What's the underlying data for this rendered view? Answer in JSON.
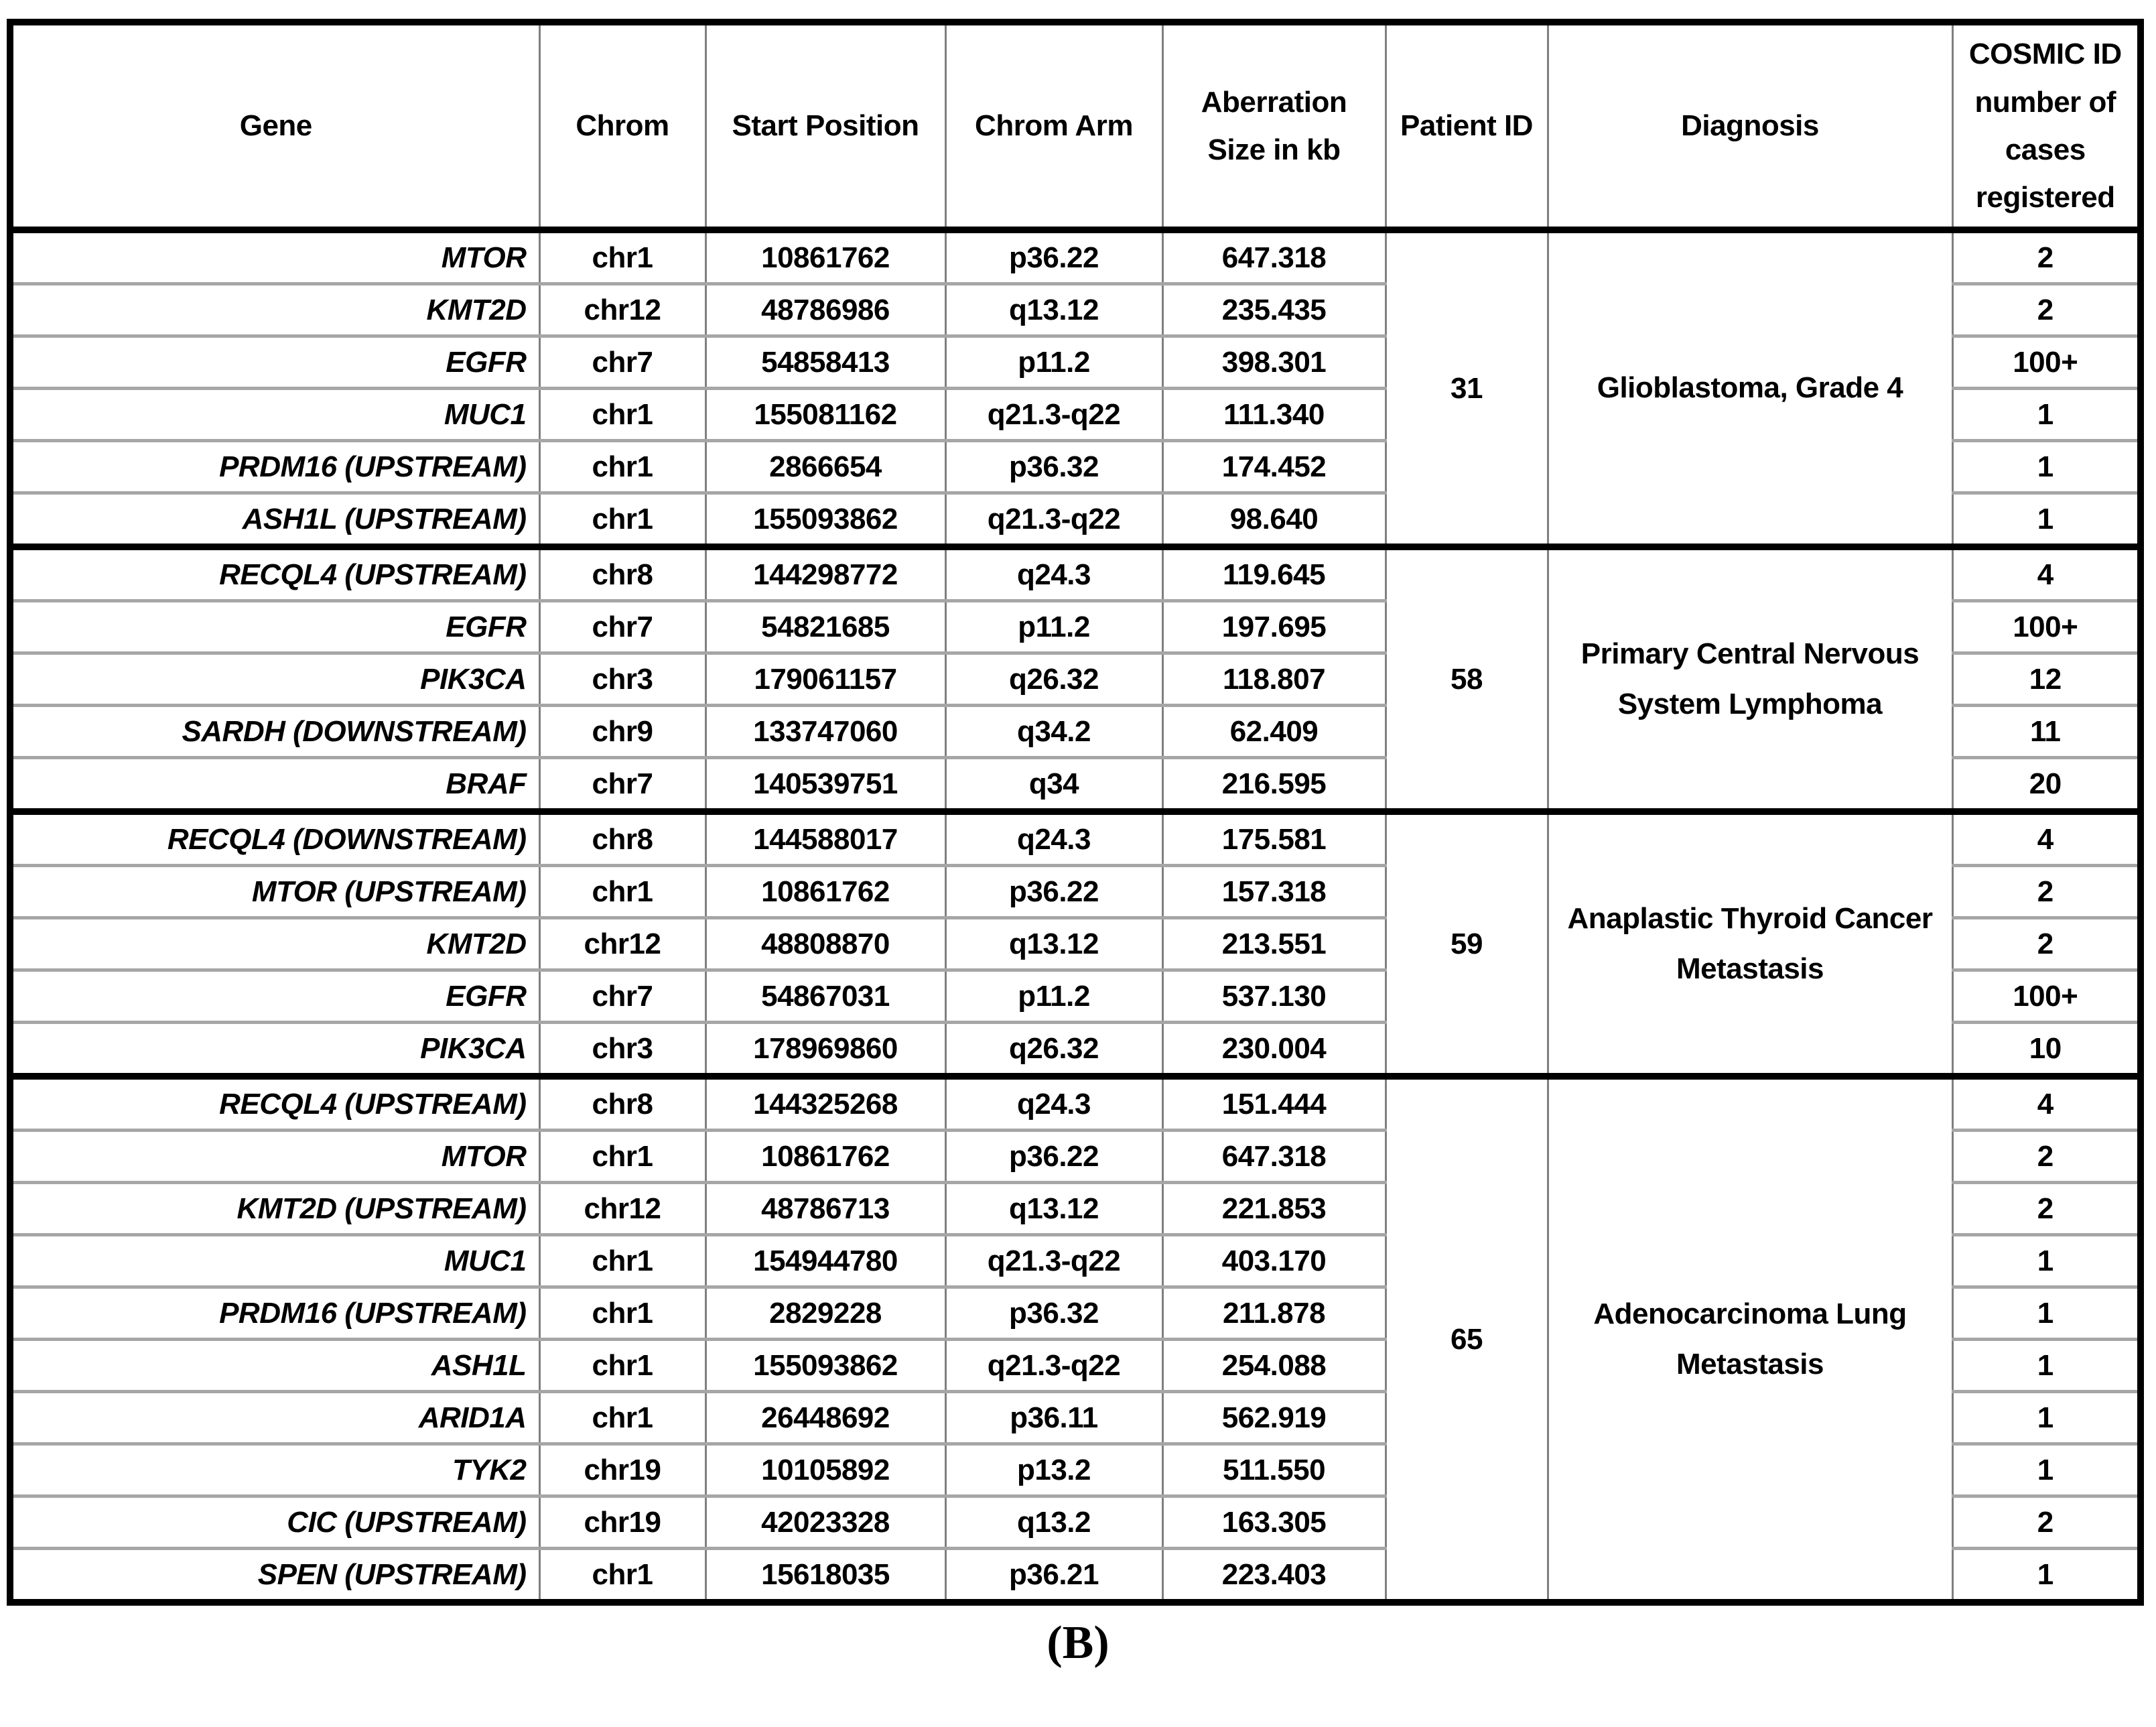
{
  "table": {
    "columns": [
      "Gene",
      "Chrom",
      "Start Position",
      "Chrom Arm",
      "Aberration Size in kb",
      "Patient ID",
      "Diagnosis",
      "COSMIC ID number of cases registered"
    ],
    "groups": [
      {
        "patient_id": "31",
        "diagnosis": "Glioblastoma, Grade 4",
        "rows": [
          {
            "gene": "MTOR",
            "chrom": "chr1",
            "start": "10861762",
            "arm": "p36.22",
            "size_kb": "647.318",
            "cosmic": "2"
          },
          {
            "gene": "KMT2D",
            "chrom": "chr12",
            "start": "48786986",
            "arm": "q13.12",
            "size_kb": "235.435",
            "cosmic": "2"
          },
          {
            "gene": "EGFR",
            "chrom": "chr7",
            "start": "54858413",
            "arm": "p11.2",
            "size_kb": "398.301",
            "cosmic": "100+"
          },
          {
            "gene": "MUC1",
            "chrom": "chr1",
            "start": "155081162",
            "arm": "q21.3-q22",
            "size_kb": "111.340",
            "cosmic": "1"
          },
          {
            "gene": "PRDM16 (UPSTREAM)",
            "chrom": "chr1",
            "start": "2866654",
            "arm": "p36.32",
            "size_kb": "174.452",
            "cosmic": "1"
          },
          {
            "gene": "ASH1L (UPSTREAM)",
            "chrom": "chr1",
            "start": "155093862",
            "arm": "q21.3-q22",
            "size_kb": "98.640",
            "cosmic": "1"
          }
        ]
      },
      {
        "patient_id": "58",
        "diagnosis": "Primary Central Nervous System Lymphoma",
        "rows": [
          {
            "gene": "RECQL4 (UPSTREAM)",
            "chrom": "chr8",
            "start": "144298772",
            "arm": "q24.3",
            "size_kb": "119.645",
            "cosmic": "4"
          },
          {
            "gene": "EGFR",
            "chrom": "chr7",
            "start": "54821685",
            "arm": "p11.2",
            "size_kb": "197.695",
            "cosmic": "100+"
          },
          {
            "gene": "PIK3CA",
            "chrom": "chr3",
            "start": "179061157",
            "arm": "q26.32",
            "size_kb": "118.807",
            "cosmic": "12"
          },
          {
            "gene": "SARDH (DOWNSTREAM)",
            "chrom": "chr9",
            "start": "133747060",
            "arm": "q34.2",
            "size_kb": "62.409",
            "cosmic": "11"
          },
          {
            "gene": "BRAF",
            "chrom": "chr7",
            "start": "140539751",
            "arm": "q34",
            "size_kb": "216.595",
            "cosmic": "20"
          }
        ]
      },
      {
        "patient_id": "59",
        "diagnosis": "Anaplastic Thyroid Cancer Metastasis",
        "rows": [
          {
            "gene": "RECQL4 (DOWNSTREAM)",
            "chrom": "chr8",
            "start": "144588017",
            "arm": "q24.3",
            "size_kb": "175.581",
            "cosmic": "4"
          },
          {
            "gene": "MTOR (UPSTREAM)",
            "chrom": "chr1",
            "start": "10861762",
            "arm": "p36.22",
            "size_kb": "157.318",
            "cosmic": "2"
          },
          {
            "gene": "KMT2D",
            "chrom": "chr12",
            "start": "48808870",
            "arm": "q13.12",
            "size_kb": "213.551",
            "cosmic": "2"
          },
          {
            "gene": "EGFR",
            "chrom": "chr7",
            "start": "54867031",
            "arm": "p11.2",
            "size_kb": "537.130",
            "cosmic": "100+"
          },
          {
            "gene": "PIK3CA",
            "chrom": "chr3",
            "start": "178969860",
            "arm": "q26.32",
            "size_kb": "230.004",
            "cosmic": "10"
          }
        ]
      },
      {
        "patient_id": "65",
        "diagnosis": "Adenocarcinoma Lung Metastasis",
        "rows": [
          {
            "gene": "RECQL4 (UPSTREAM)",
            "chrom": "chr8",
            "start": "144325268",
            "arm": "q24.3",
            "size_kb": "151.444",
            "cosmic": "4"
          },
          {
            "gene": "MTOR",
            "chrom": "chr1",
            "start": "10861762",
            "arm": "p36.22",
            "size_kb": "647.318",
            "cosmic": "2"
          },
          {
            "gene": "KMT2D (UPSTREAM)",
            "chrom": "chr12",
            "start": "48786713",
            "arm": "q13.12",
            "size_kb": "221.853",
            "cosmic": "2"
          },
          {
            "gene": "MUC1",
            "chrom": "chr1",
            "start": "154944780",
            "arm": "q21.3-q22",
            "size_kb": "403.170",
            "cosmic": "1"
          },
          {
            "gene": "PRDM16 (UPSTREAM)",
            "chrom": "chr1",
            "start": "2829228",
            "arm": "p36.32",
            "size_kb": "211.878",
            "cosmic": "1"
          },
          {
            "gene": "ASH1L",
            "chrom": "chr1",
            "start": "155093862",
            "arm": "q21.3-q22",
            "size_kb": "254.088",
            "cosmic": "1"
          },
          {
            "gene": "ARID1A",
            "chrom": "chr1",
            "start": "26448692",
            "arm": "p36.11",
            "size_kb": "562.919",
            "cosmic": "1"
          },
          {
            "gene": "TYK2",
            "chrom": "chr19",
            "start": "10105892",
            "arm": "p13.2",
            "size_kb": "511.550",
            "cosmic": "1"
          },
          {
            "gene": "CIC (UPSTREAM)",
            "chrom": "chr19",
            "start": "42023328",
            "arm": "q13.2",
            "size_kb": "163.305",
            "cosmic": "2"
          },
          {
            "gene": "SPEN (UPSTREAM)",
            "chrom": "chr1",
            "start": "15618035",
            "arm": "p36.21",
            "size_kb": "223.403",
            "cosmic": "1"
          }
        ]
      }
    ]
  },
  "caption": "(B)",
  "colors": {
    "background": "#ffffff",
    "text": "#000000",
    "border_outer": "#000000",
    "border_vertical": "#7f7f7f",
    "border_row": "#a6a6a6"
  }
}
